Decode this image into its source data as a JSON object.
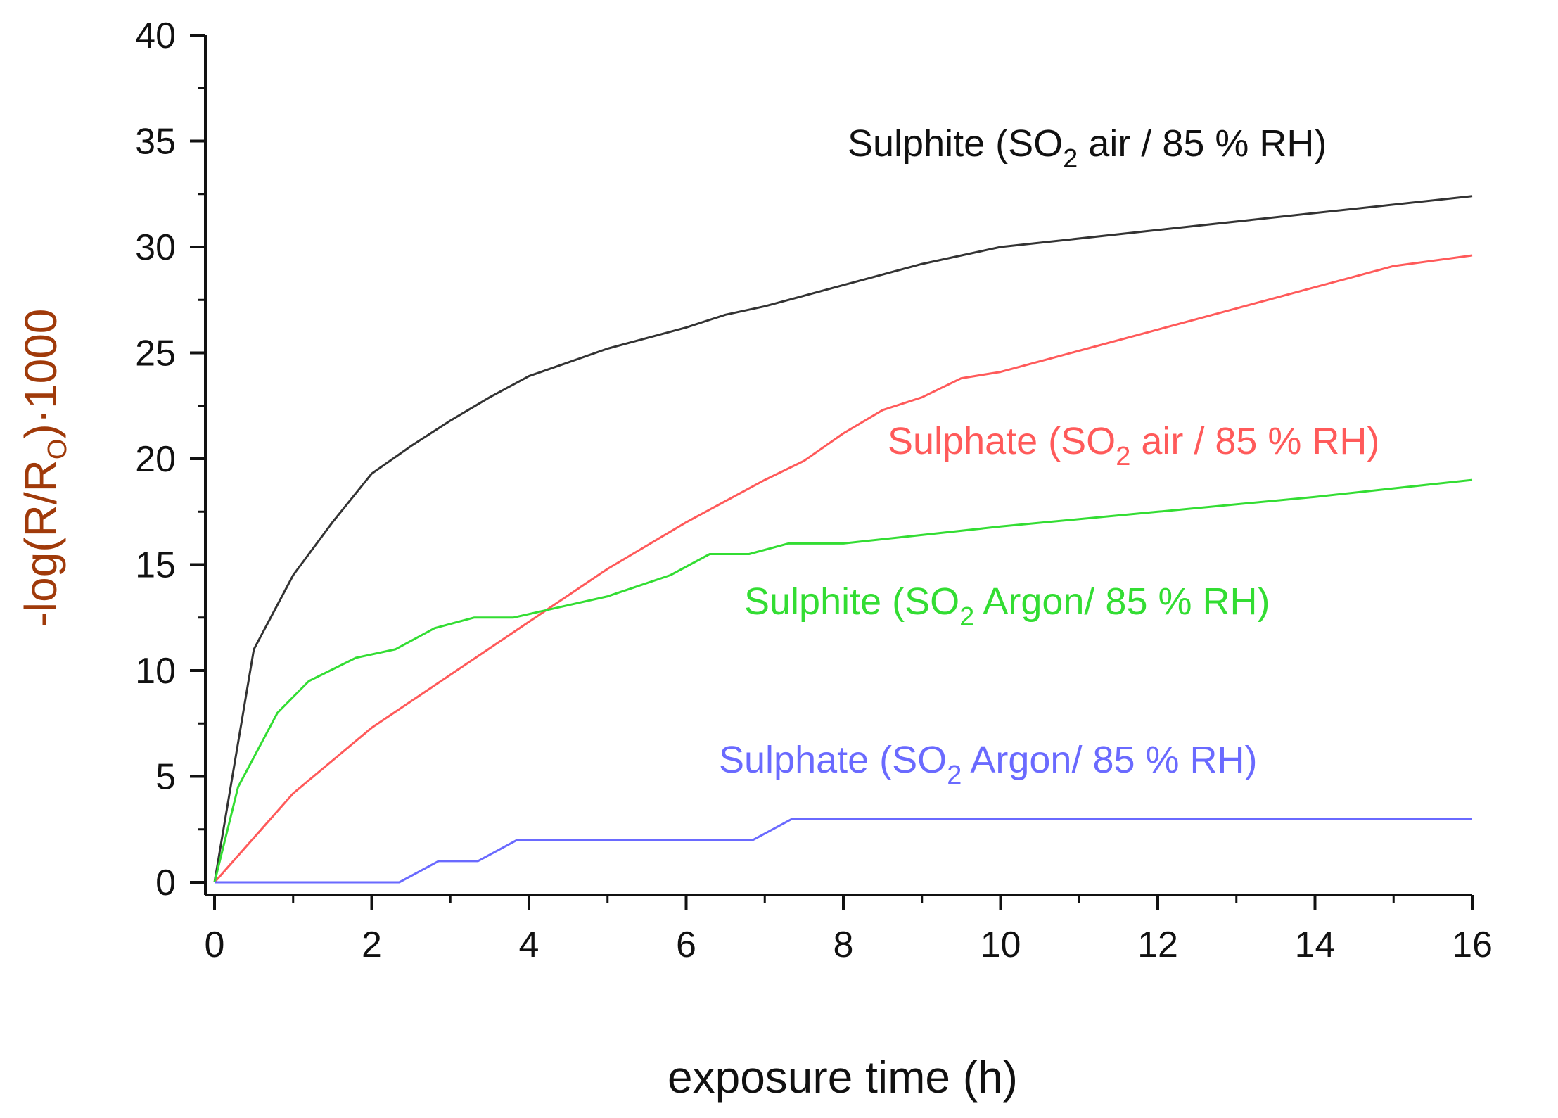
{
  "chart_data": {
    "type": "line",
    "xlabel": "exposure time (h)",
    "ylabel": {
      "prefix": "-log(R/R",
      "subscript": "O",
      "suffix": ")·1000",
      "color": "#a03a0a"
    },
    "xlim": [
      0,
      16
    ],
    "ylim": [
      0,
      40
    ],
    "xticks": [
      0,
      2,
      4,
      6,
      8,
      10,
      12,
      14,
      16
    ],
    "yticks": [
      0,
      5,
      10,
      15,
      20,
      25,
      30,
      35,
      40
    ],
    "grid": false,
    "legend": "inline labels",
    "series": [
      {
        "name": "Sulphite (SO2 air / 85 % RH)",
        "label_parts": [
          "Sulphite (SO",
          "2",
          " air / 85 % RH)"
        ],
        "color": "#333333",
        "x": [
          0,
          0.5,
          1,
          1.5,
          2,
          2.5,
          3,
          3.5,
          4,
          5,
          6,
          6.5,
          7,
          8,
          9,
          10,
          12,
          14,
          16
        ],
        "y": [
          0,
          11,
          14.5,
          17,
          19.3,
          20.6,
          21.8,
          22.9,
          23.9,
          25.2,
          26.2,
          26.8,
          27.2,
          28.2,
          29.2,
          30,
          30.8,
          31.6,
          32.4
        ]
      },
      {
        "name": "Sulphate (SO2 air / 85 % RH)",
        "label_parts": [
          "Sulphate (SO",
          "2",
          " air / 85 % RH)"
        ],
        "color": "#ff5a5a",
        "x": [
          0,
          1,
          2,
          3,
          4,
          5,
          6,
          7,
          7.5,
          8,
          8.5,
          9,
          9.5,
          10,
          11,
          12,
          13,
          14,
          15,
          16
        ],
        "y": [
          0,
          4.2,
          7.3,
          9.8,
          12.3,
          14.8,
          17,
          19,
          19.9,
          21.2,
          22.3,
          22.9,
          23.8,
          24.1,
          25.1,
          26.1,
          27.1,
          28.1,
          29.1,
          29.6
        ]
      },
      {
        "name": "Sulphite (SO2 Argon/ 85 % RH)",
        "label_parts": [
          "Sulphite (SO",
          "2",
          " Argon/ 85 % RH)"
        ],
        "color": "#33dd33",
        "x": [
          0,
          0.3,
          0.8,
          1.2,
          1.8,
          2.3,
          2.8,
          3.3,
          3.8,
          5,
          5.8,
          6.3,
          6.8,
          7.3,
          8,
          10,
          12,
          14,
          16
        ],
        "y": [
          0,
          4.5,
          8,
          9.5,
          10.6,
          11,
          12,
          12.5,
          12.5,
          13.5,
          14.5,
          15.5,
          15.5,
          16,
          16,
          16.8,
          17.5,
          18.2,
          19
        ]
      },
      {
        "name": "Sulphate (SO2 Argon/ 85 % RH)",
        "label_parts": [
          "Sulphate (SO",
          "2",
          " Argon/ 85 % RH)"
        ],
        "color": "#6a6aff",
        "x": [
          0,
          2.35,
          2.85,
          3.35,
          3.85,
          6.85,
          7.35,
          16
        ],
        "y": [
          0,
          0,
          1,
          1,
          2,
          2,
          3,
          3
        ]
      }
    ]
  }
}
